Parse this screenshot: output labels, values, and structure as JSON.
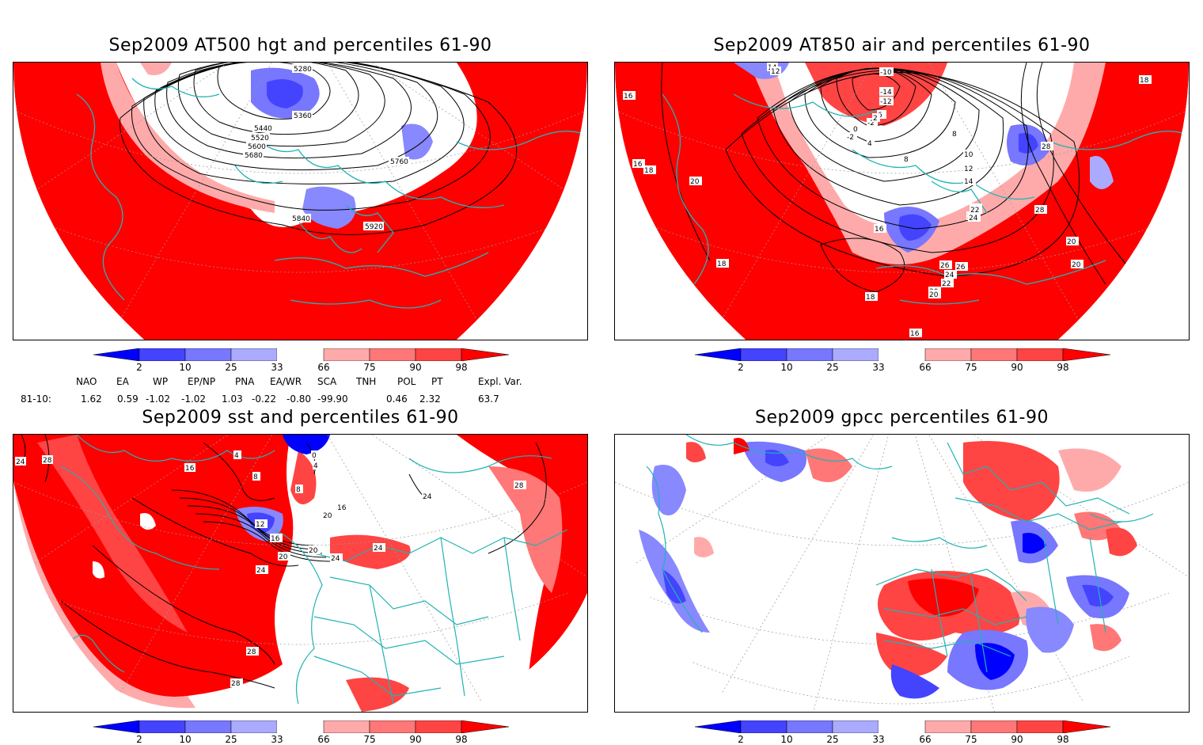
{
  "panels": [
    {
      "title": "Sep2009 AT500 hgt and percentiles 61-90",
      "contour_labels": [
        "5280",
        "5360",
        "5440",
        "5520",
        "5600",
        "5680",
        "5760",
        "5840",
        "5920"
      ]
    },
    {
      "title": "Sep2009 AT850 air and percentiles 61-90",
      "contour_labels": [
        "14",
        "12",
        "-10",
        "-14",
        "-12",
        "6",
        "-2",
        "2",
        "0",
        "-2",
        "4",
        "8",
        "8",
        "10",
        "12",
        "14",
        "16",
        "18",
        "20",
        "22",
        "24",
        "26",
        "28",
        "24",
        "22",
        "20",
        "18",
        "16",
        "16",
        "18",
        "20",
        "22",
        "24",
        "26",
        "28",
        "20",
        "20",
        "18",
        "16"
      ]
    },
    {
      "title": "Sep2009 sst and percentiles 61-90",
      "contour_labels": [
        "24",
        "28",
        "16",
        "8",
        "4",
        "0",
        "4",
        "8",
        "12",
        "16",
        "20",
        "20",
        "24",
        "16",
        "20",
        "24",
        "24",
        "24",
        "28",
        "28",
        "28"
      ]
    },
    {
      "title": "Sep2009 gpcc percentiles 61-90",
      "contour_labels": []
    }
  ],
  "colorbar": {
    "ticks": [
      "2",
      "10",
      "25",
      "33",
      "66",
      "75",
      "90",
      "98"
    ],
    "colors": {
      "blue_dark": "#0000ff",
      "blue_mid": "#4444ff",
      "blue_light": "#8888ff",
      "blue_pale": "#aaaaff",
      "white": "#ffffff",
      "red_pale": "#ffaaaa",
      "red_light": "#ff7777",
      "red_mid": "#ff4444",
      "red_dark": "#ff0000"
    }
  },
  "indices": {
    "headers": [
      "NAO",
      "EA",
      "WP",
      "EP/NP",
      "PNA",
      "EA/WR",
      "SCA",
      "TNH",
      "POL",
      "PT",
      "Expl. Var."
    ],
    "row_label": "81-10:",
    "values": [
      "1.62",
      "0.59",
      "-1.02",
      "-1.02",
      "1.03",
      "-0.22",
      "-0.80",
      "-99.90",
      "0.46",
      "2.32",
      "63.7"
    ]
  },
  "colors": {
    "coast": "#22b3b3",
    "grid": "#999999",
    "contour": "#000000"
  }
}
